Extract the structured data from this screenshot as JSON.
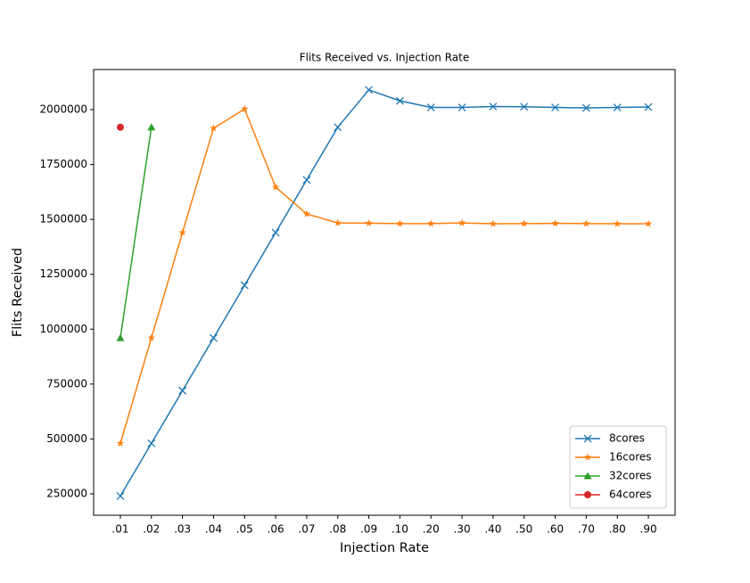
{
  "chart_data": {
    "type": "line",
    "title": "Flits Received vs. Injection Rate",
    "x_label": "Injection Rate",
    "y_label": "Flits Received",
    "categories": [
      ".01",
      ".02",
      ".03",
      ".04",
      ".05",
      ".06",
      ".07",
      ".08",
      ".09",
      ".10",
      ".20",
      ".30",
      ".40",
      ".50",
      ".60",
      ".70",
      ".80",
      ".90"
    ],
    "series": [
      {
        "name": "8cores",
        "color": "#1f77b4",
        "marker": "x",
        "values": [
          240000,
          480000,
          720000,
          960000,
          1200000,
          1440000,
          1680000,
          1920000,
          2090000,
          2040000,
          2010000,
          2010000,
          2014000,
          2013000,
          2010000,
          2008000,
          2010000,
          2012000
        ]
      },
      {
        "name": "16cores",
        "color": "#ff7f0e",
        "marker": "*",
        "values": [
          480000,
          960000,
          1440000,
          1915000,
          2003000,
          1647000,
          1525000,
          1484000,
          1483000,
          1481000,
          1481000,
          1484000,
          1480000,
          1481000,
          1482000,
          1481000,
          1480000,
          1480000
        ]
      },
      {
        "name": "32cores",
        "color": "#2ca02c",
        "marker": "^",
        "values": [
          960000,
          1920000,
          null,
          null,
          null,
          null,
          null,
          null,
          null,
          null,
          null,
          null,
          null,
          null,
          null,
          null,
          null,
          null
        ]
      },
      {
        "name": "64cores",
        "color": "#d62728",
        "marker": "o",
        "values": [
          1920000,
          null,
          null,
          null,
          null,
          null,
          null,
          null,
          null,
          null,
          null,
          null,
          null,
          null,
          null,
          null,
          null,
          null
        ]
      }
    ],
    "ylim": [
      152500,
      2182700
    ],
    "yticks": [
      250000,
      500000,
      750000,
      1000000,
      1250000,
      1500000,
      1750000,
      2000000
    ],
    "grid": false,
    "legend": "lower right"
  }
}
